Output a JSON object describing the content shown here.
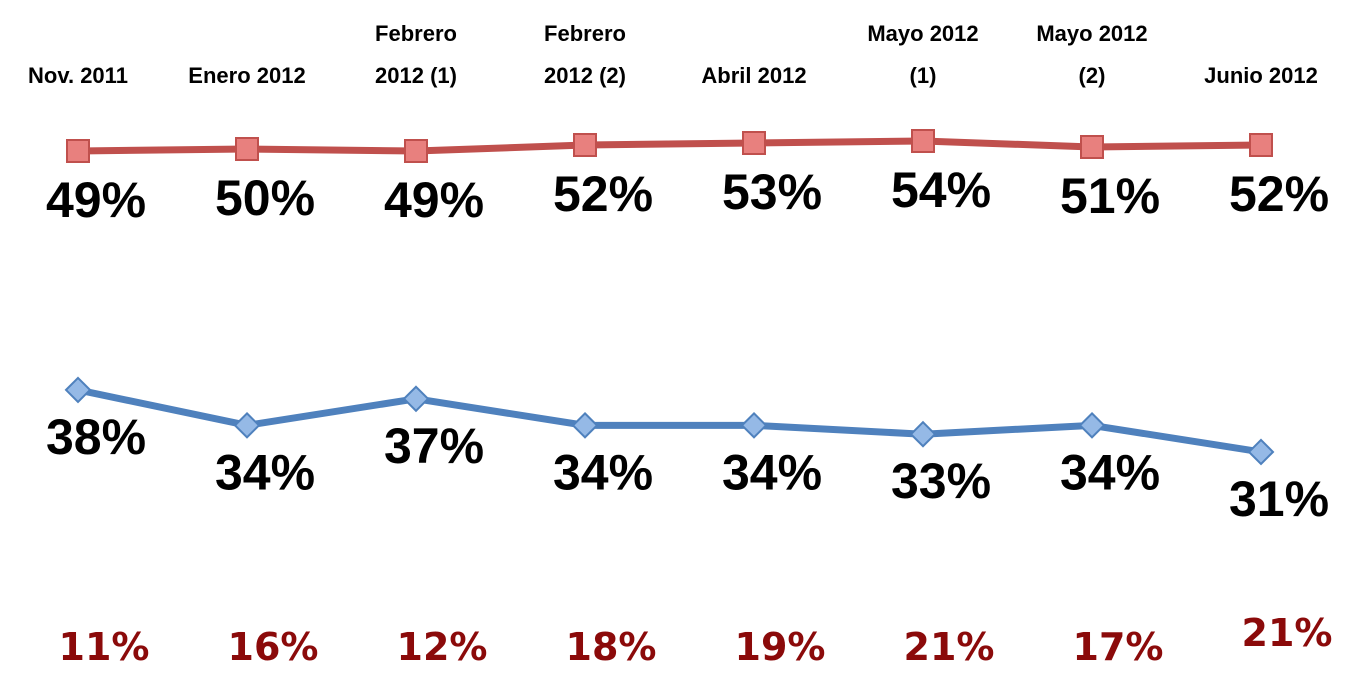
{
  "chart_data": {
    "type": "line",
    "categories": [
      "Nov. 2011",
      "Enero 2012",
      "Febrero\n2012 (1)",
      "Febrero\n2012 (2)",
      "Abril 2012",
      "Mayo 2012\n(1)",
      "Mayo 2012\n(2)",
      "Junio 2012"
    ],
    "series": [
      {
        "color": "#c0504d",
        "marker": "square",
        "values": [
          49,
          50,
          49,
          52,
          53,
          54,
          51,
          52
        ],
        "value_labels": [
          "49%",
          "50%",
          "49%",
          "52%",
          "53%",
          "54%",
          "51%",
          "52%"
        ]
      },
      {
        "color": "#4f81bd",
        "marker": "diamond",
        "values": [
          38,
          34,
          37,
          34,
          34,
          33,
          34,
          31
        ],
        "value_labels": [
          "38%",
          "34%",
          "37%",
          "34%",
          "34%",
          "33%",
          "34%",
          "31%"
        ]
      }
    ],
    "bottom_row": {
      "color": "#8b0a0a",
      "values": [
        11,
        16,
        12,
        18,
        19,
        21,
        17,
        21
      ],
      "value_labels": [
        "11%",
        "16%",
        "12%",
        "18%",
        "19%",
        "21%",
        "17%",
        "21%"
      ]
    }
  }
}
